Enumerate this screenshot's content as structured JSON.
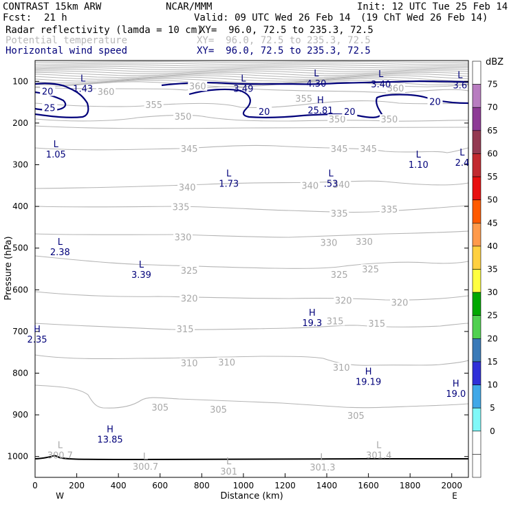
{
  "header": {
    "model": "CONTRAST 15km ARW",
    "fcst_label": "Fcst:",
    "fcst_value": "21 h",
    "org": "NCAR/MMM",
    "valid": "Valid: 09 UTC Wed 26 Feb 14",
    "valid_local": "(19 ChT Wed 26 Feb 14)",
    "init": "Init: 12 UTC Tue 25 Feb 14",
    "fields": [
      {
        "name": "Radar reflectivity (lamda = 10 cm)",
        "xy": "XY=  96.0, 72.5 to 235.3, 72.5",
        "color": "#000000"
      },
      {
        "name": "Potential temperature",
        "xy": "XY=  96.0, 72.5 to 235.3, 72.5",
        "color": "#b8b8b8"
      },
      {
        "name": "Horizontal wind speed",
        "xy": "XY=  96.0, 72.5 to 235.3, 72.5",
        "color": "#00007a"
      }
    ]
  },
  "chart_data": {
    "type": "cross-section",
    "xlabel": "Distance (km)",
    "ylabel": "Pressure (hPa)",
    "xlim": [
      0,
      2080
    ],
    "ylim": [
      1050,
      50
    ],
    "x_ticks": [
      0,
      200,
      400,
      600,
      800,
      1000,
      1200,
      1400,
      1600,
      1800,
      2000
    ],
    "y_ticks": [
      100,
      200,
      300,
      400,
      500,
      600,
      700,
      800,
      900,
      1000
    ],
    "west_label": "W",
    "east_label": "E",
    "colorbar": {
      "unit": "dBZ",
      "levels": [
        "75",
        "70",
        "65",
        "60",
        "55",
        "50",
        "45",
        "40",
        "35",
        "30",
        "25",
        "20",
        "15",
        "10",
        "5",
        "0"
      ],
      "colors": [
        "#ffffff",
        "#b87cc0",
        "#8e3a96",
        "#943a52",
        "#c22a30",
        "#e81010",
        "#ff5a00",
        "#ff9a4a",
        "#ffd040",
        "#ffff40",
        "#00a800",
        "#50d050",
        "#3a7ab8",
        "#3030d8",
        "#40a8e8",
        "#80f8f8",
        "#ffffff",
        "#ffffff"
      ]
    },
    "theta_labels": [
      {
        "text": "360",
        "x": 340,
        "p": 126
      },
      {
        "text": "355",
        "x": 570,
        "p": 157
      },
      {
        "text": "360",
        "x": 780,
        "p": 113
      },
      {
        "text": "355",
        "x": 1290,
        "p": 142
      },
      {
        "text": "360",
        "x": 1730,
        "p": 118
      },
      {
        "text": "350",
        "x": 710,
        "p": 185
      },
      {
        "text": "350",
        "x": 1450,
        "p": 192
      },
      {
        "text": "350",
        "x": 1700,
        "p": 192
      },
      {
        "text": "345",
        "x": 740,
        "p": 263
      },
      {
        "text": "345",
        "x": 1460,
        "p": 263
      },
      {
        "text": "345",
        "x": 1600,
        "p": 263
      },
      {
        "text": "340",
        "x": 730,
        "p": 355
      },
      {
        "text": "340",
        "x": 1320,
        "p": 351
      },
      {
        "text": "340",
        "x": 1470,
        "p": 349
      },
      {
        "text": "335",
        "x": 700,
        "p": 402
      },
      {
        "text": "335",
        "x": 1460,
        "p": 418
      },
      {
        "text": "335",
        "x": 1700,
        "p": 408
      },
      {
        "text": "330",
        "x": 710,
        "p": 475
      },
      {
        "text": "330",
        "x": 1410,
        "p": 488
      },
      {
        "text": "330",
        "x": 1580,
        "p": 486
      },
      {
        "text": "325",
        "x": 740,
        "p": 555
      },
      {
        "text": "325",
        "x": 1460,
        "p": 565
      },
      {
        "text": "325",
        "x": 1610,
        "p": 552
      },
      {
        "text": "320",
        "x": 740,
        "p": 622
      },
      {
        "text": "320",
        "x": 1480,
        "p": 627
      },
      {
        "text": "320",
        "x": 1750,
        "p": 632
      },
      {
        "text": "315",
        "x": 720,
        "p": 695
      },
      {
        "text": "315",
        "x": 1440,
        "p": 676
      },
      {
        "text": "315",
        "x": 1640,
        "p": 682
      },
      {
        "text": "310",
        "x": 740,
        "p": 777
      },
      {
        "text": "310",
        "x": 920,
        "p": 775
      },
      {
        "text": "310",
        "x": 1470,
        "p": 788
      },
      {
        "text": "305",
        "x": 600,
        "p": 883
      },
      {
        "text": "305",
        "x": 880,
        "p": 888
      },
      {
        "text": "305",
        "x": 1540,
        "p": 903
      }
    ],
    "wind_labels": [
      {
        "text": "20",
        "x": 60,
        "p": 125
      },
      {
        "text": "25",
        "x": 70,
        "p": 165
      },
      {
        "text": "20",
        "x": 1100,
        "p": 174
      },
      {
        "text": "20",
        "x": 1510,
        "p": 174
      },
      {
        "text": "20",
        "x": 1920,
        "p": 150
      }
    ],
    "extrema_blue": [
      {
        "kind": "L",
        "value": "1.43",
        "x": 230,
        "p": 100
      },
      {
        "kind": "L",
        "value": "3.49",
        "x": 1000,
        "p": 100
      },
      {
        "kind": "L",
        "value": "4.30",
        "x": 1350,
        "p": 88
      },
      {
        "kind": "L",
        "value": "3.40",
        "x": 1660,
        "p": 90
      },
      {
        "kind": "L",
        "value": "3.6",
        "x": 2040,
        "p": 92
      },
      {
        "kind": "H",
        "value": "25.81",
        "x": 1370,
        "p": 152
      },
      {
        "kind": "L",
        "value": "1.05",
        "x": 100,
        "p": 258
      },
      {
        "kind": "L",
        "value": "1.10",
        "x": 1840,
        "p": 283
      },
      {
        "kind": "L",
        "value": "2.4",
        "x": 2050,
        "p": 278
      },
      {
        "kind": "L",
        "value": "1.73",
        "x": 930,
        "p": 328
      },
      {
        "kind": "L",
        "value": ".53",
        "x": 1420,
        "p": 328
      },
      {
        "kind": "L",
        "value": "2.38",
        "x": 120,
        "p": 492
      },
      {
        "kind": "L",
        "value": "3.39",
        "x": 510,
        "p": 547
      },
      {
        "kind": "H",
        "value": "19.3",
        "x": 1330,
        "p": 662
      },
      {
        "kind": "H",
        "value": "2.35",
        "x": 10,
        "p": 702
      },
      {
        "kind": "H",
        "value": "19.19",
        "x": 1600,
        "p": 803
      },
      {
        "kind": "H",
        "value": "19.0",
        "x": 2020,
        "p": 832
      },
      {
        "kind": "H",
        "value": "13.85",
        "x": 360,
        "p": 942
      }
    ],
    "extrema_grey": [
      {
        "kind": "L",
        "value": "300.7",
        "x": 120,
        "p": 980
      },
      {
        "kind": "L",
        "value": "300.7",
        "x": 530,
        "p": 1007
      },
      {
        "kind": "L",
        "value": "301",
        "x": 930,
        "p": 1019
      },
      {
        "kind": "L",
        "value": "301.3",
        "x": 1380,
        "p": 1009
      },
      {
        "kind": "L",
        "value": "301.4",
        "x": 1650,
        "p": 980
      }
    ]
  }
}
